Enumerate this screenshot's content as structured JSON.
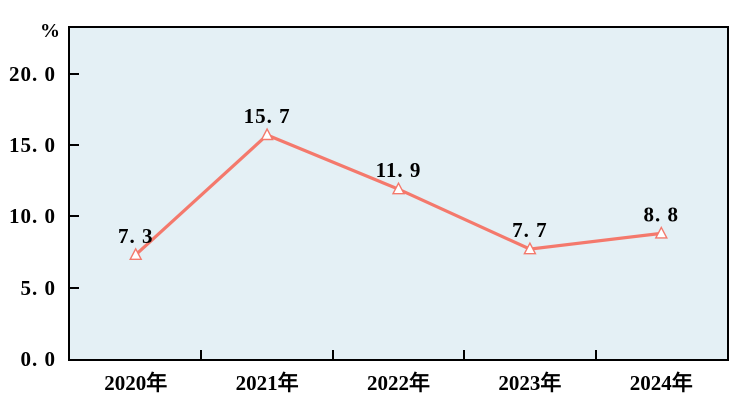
{
  "chart_data": {
    "type": "line",
    "title": "",
    "xlabel": "",
    "ylabel": "%",
    "categories": [
      "2020年",
      "2021年",
      "2022年",
      "2023年",
      "2024年"
    ],
    "series": [
      {
        "name": "",
        "values": [
          7.3,
          15.7,
          11.9,
          7.7,
          8.8
        ]
      }
    ],
    "point_labels": [
      "7. 3",
      "15. 7",
      "11. 9",
      "7. 7",
      "8. 8"
    ],
    "y_ticks": [
      0,
      5,
      10,
      15,
      20
    ],
    "y_tick_labels": [
      "0. 0",
      "5. 0",
      "10. 0",
      "15. 0",
      "20. 0"
    ],
    "ylim": [
      0,
      23.2
    ],
    "grid": false,
    "legend": false,
    "marker": "triangle-open",
    "colors": {
      "line": "#F4796C",
      "marker_fill": "#FFFFFF",
      "plot_bg": "#E4F0F5",
      "axis": "#000000",
      "text": "#000000"
    }
  }
}
